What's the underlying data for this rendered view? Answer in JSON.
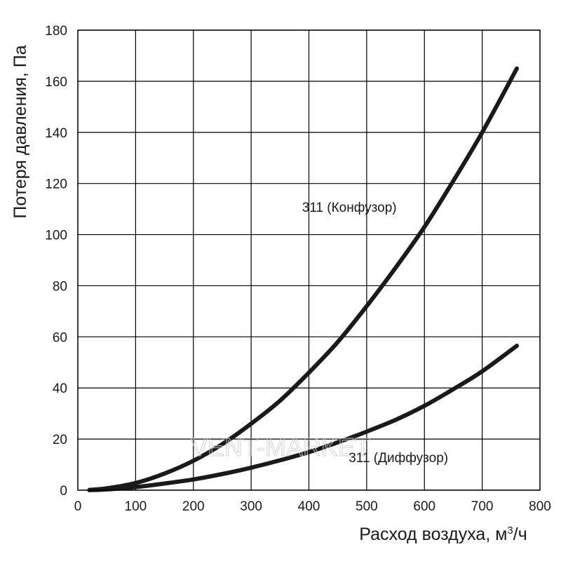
{
  "chart_data": {
    "type": "line",
    "xlabel": "Расход воздуха, м",
    "xlabel_sup": "3",
    "xlabel_tail": "/ч",
    "ylabel": "Потеря давления, Па",
    "xlim": [
      0,
      800
    ],
    "ylim": [
      0,
      180
    ],
    "xticks": [
      0,
      100,
      200,
      300,
      400,
      500,
      600,
      700,
      800
    ],
    "yticks": [
      0,
      20,
      40,
      60,
      80,
      100,
      120,
      140,
      160,
      180
    ],
    "grid": true,
    "series": [
      {
        "name": "311 (Конфузор)",
        "x": [
          20,
          50,
          100,
          150,
          200,
          250,
          300,
          350,
          400,
          450,
          500,
          550,
          600,
          650,
          700,
          760
        ],
        "y": [
          0.1,
          0.7,
          2.8,
          6.5,
          11.5,
          18,
          26,
          35,
          46,
          58,
          72,
          87,
          103,
          121,
          140,
          165
        ]
      },
      {
        "name": "311 (Диффузор)",
        "x": [
          20,
          50,
          100,
          150,
          200,
          250,
          300,
          350,
          400,
          450,
          500,
          550,
          600,
          650,
          700,
          760
        ],
        "y": [
          0,
          0.3,
          1.2,
          2.6,
          4.2,
          6.3,
          8.8,
          11.7,
          14.9,
          18.7,
          22.9,
          27.5,
          33,
          39.5,
          46.5,
          56.5
        ]
      }
    ],
    "annotations": [
      {
        "text": "311 (Конфузор)",
        "x": 470,
        "y": 109
      },
      {
        "text": "311 (Диффузор)",
        "x": 555,
        "y": 11
      }
    ],
    "watermark": "VENT-MARKET"
  }
}
